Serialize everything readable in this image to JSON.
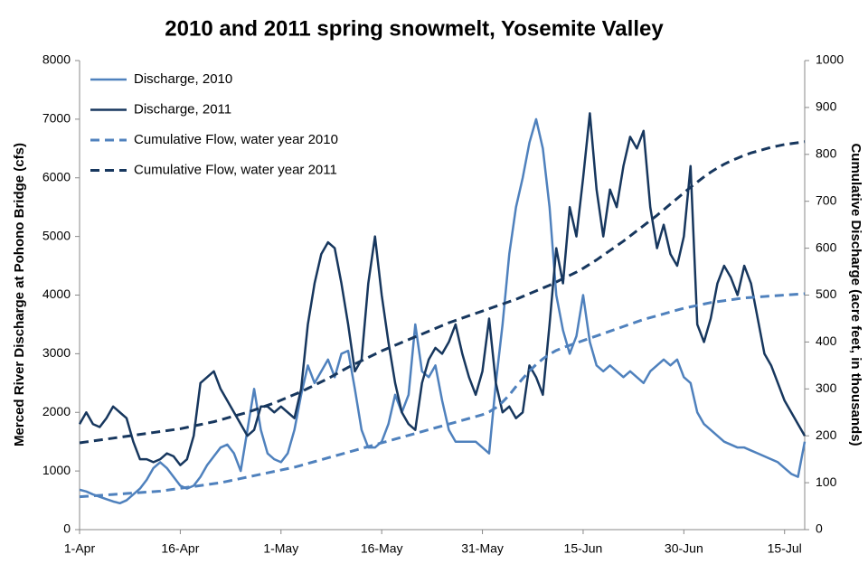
{
  "chart_data": {
    "type": "line",
    "title": "2010 and 2011 spring snowmelt, Yosemite Valley",
    "y_label": "Merced River Discharge at Pohono Bridge (cfs)",
    "y2_label": "Cumulative Discharge (acre feet, in thousands)",
    "categories": [
      "1-Apr",
      null,
      null,
      null,
      null,
      null,
      null,
      null,
      null,
      null,
      null,
      null,
      null,
      null,
      null,
      "16-Apr",
      null,
      null,
      null,
      null,
      null,
      null,
      null,
      null,
      null,
      null,
      null,
      null,
      null,
      null,
      "1-May",
      null,
      null,
      null,
      null,
      null,
      null,
      null,
      null,
      null,
      null,
      null,
      null,
      null,
      null,
      "16-May",
      null,
      null,
      null,
      null,
      null,
      null,
      null,
      null,
      null,
      null,
      null,
      null,
      null,
      null,
      "31-May",
      null,
      null,
      null,
      null,
      null,
      null,
      null,
      null,
      null,
      null,
      null,
      null,
      null,
      null,
      "15-Jun",
      null,
      null,
      null,
      null,
      null,
      null,
      null,
      null,
      null,
      null,
      null,
      null,
      null,
      null,
      "30-Jun",
      null,
      null,
      null,
      null,
      null,
      null,
      null,
      null,
      null,
      null,
      null,
      null,
      null,
      null,
      "15-Jul",
      null,
      null,
      null
    ],
    "ylim": [
      0,
      8000
    ],
    "yticks": [
      0,
      1000,
      2000,
      3000,
      4000,
      5000,
      6000,
      7000,
      8000
    ],
    "y2lim": [
      0,
      1000
    ],
    "y2ticks": [
      0,
      100,
      200,
      300,
      400,
      500,
      600,
      700,
      800,
      900,
      1000
    ],
    "legend": "top-left",
    "grid": false,
    "series": [
      {
        "name": "Discharge, 2010",
        "color": "#4f81bd",
        "dashed": false,
        "values": [
          680,
          650,
          600,
          560,
          520,
          480,
          450,
          500,
          600,
          700,
          850,
          1050,
          1150,
          1050,
          900,
          750,
          700,
          750,
          900,
          1100,
          1250,
          1400,
          1450,
          1300,
          1000,
          1700,
          2400,
          1700,
          1300,
          1200,
          1150,
          1300,
          1700,
          2300,
          2800,
          2500,
          2700,
          2900,
          2600,
          3000,
          3050,
          2400,
          1700,
          1400,
          1400,
          1500,
          1800,
          2300,
          2000,
          2300,
          3500,
          2700,
          2600,
          2800,
          2200,
          1700,
          1500,
          1500,
          1500,
          1500,
          1400,
          1300,
          2500,
          3500,
          4700,
          5500,
          6000,
          6600,
          7000,
          6500,
          5500,
          4000,
          3400,
          3000,
          3300,
          4000,
          3200,
          2800,
          2700,
          2800,
          2700,
          2600,
          2700,
          2600,
          2500,
          2700,
          2800,
          2900,
          2800,
          2900,
          2600,
          2500,
          2000,
          1800,
          1700,
          1600,
          1500,
          1450,
          1400,
          1400,
          1350,
          1300,
          1250,
          1200,
          1150,
          1050,
          950,
          900,
          1500
        ]
      },
      {
        "name": "Discharge, 2011",
        "color": "#17375e",
        "dashed": false,
        "values": [
          1800,
          2000,
          1800,
          1750,
          1900,
          2100,
          2000,
          1900,
          1500,
          1200,
          1200,
          1150,
          1200,
          1300,
          1250,
          1100,
          1200,
          1600,
          2500,
          2600,
          2700,
          2400,
          2200,
          2000,
          1800,
          1600,
          1700,
          2100,
          2100,
          2000,
          2100,
          2000,
          1900,
          2400,
          3500,
          4200,
          4700,
          4900,
          4800,
          4200,
          3500,
          2700,
          2900,
          4200,
          5000,
          4000,
          3200,
          2500,
          2000,
          1800,
          1700,
          2500,
          2900,
          3100,
          3000,
          3200,
          3500,
          3000,
          2600,
          2300,
          2700,
          3600,
          2500,
          2000,
          2100,
          1900,
          2000,
          2800,
          2600,
          2300,
          3500,
          4800,
          4200,
          5500,
          5000,
          6000,
          7100,
          5800,
          5000,
          5800,
          5500,
          6200,
          6700,
          6500,
          6800,
          5500,
          4800,
          5200,
          4700,
          4500,
          5000,
          6200,
          3500,
          3200,
          3600,
          4200,
          4500,
          4300,
          4000,
          4500,
          4200,
          3600,
          3000,
          2800,
          2500,
          2200,
          2000,
          1800,
          1600
        ]
      },
      {
        "name": "Cumulative Flow, water year 2010",
        "color": "#4f81bd",
        "dashed": true,
        "axis": "y2",
        "values": [
          70,
          71,
          72,
          73,
          74,
          75,
          76,
          77,
          78,
          79,
          80,
          81,
          82,
          84,
          86,
          88,
          90,
          92,
          94,
          96,
          98,
          100,
          103,
          106,
          109,
          112,
          115,
          118,
          121,
          124,
          127,
          130,
          133,
          137,
          141,
          145,
          149,
          153,
          157,
          161,
          165,
          169,
          173,
          177,
          181,
          185,
          189,
          193,
          197,
          201,
          205,
          209,
          213,
          217,
          221,
          225,
          229,
          233,
          237,
          241,
          245,
          251,
          260,
          272,
          287,
          305,
          322,
          338,
          352,
          364,
          374,
          382,
          388,
          393,
          398,
          403,
          408,
          413,
          418,
          423,
          428,
          433,
          438,
          443,
          448,
          452,
          456,
          460,
          464,
          468,
          472,
          475,
          478,
          481,
          484,
          486,
          488,
          490,
          492,
          494,
          495,
          496,
          497,
          498,
          499,
          500,
          501,
          502,
          503
        ]
      },
      {
        "name": "Cumulative Flow, water year 2011",
        "color": "#17375e",
        "dashed": true,
        "axis": "y2",
        "values": [
          185,
          187,
          189,
          191,
          193,
          195,
          197,
          199,
          201,
          203,
          205,
          207,
          209,
          211,
          213,
          215,
          218,
          221,
          224,
          227,
          230,
          234,
          238,
          242,
          246,
          250,
          255,
          260,
          265,
          270,
          276,
          282,
          288,
          294,
          301,
          308,
          315,
          322,
          330,
          338,
          346,
          353,
          360,
          367,
          374,
          381,
          387,
          393,
          399,
          405,
          411,
          417,
          423,
          429,
          435,
          441,
          446,
          451,
          456,
          461,
          466,
          471,
          476,
          481,
          486,
          491,
          497,
          503,
          509,
          515,
          521,
          528,
          535,
          542,
          549,
          557,
          566,
          575,
          585,
          595,
          605,
          615,
          626,
          637,
          648,
          659,
          670,
          682,
          694,
          706,
          718,
          730,
          741,
          752,
          762,
          771,
          779,
          786,
          792,
          798,
          803,
          807,
          811,
          815,
          818,
          821,
          823,
          825,
          827
        ]
      }
    ]
  }
}
